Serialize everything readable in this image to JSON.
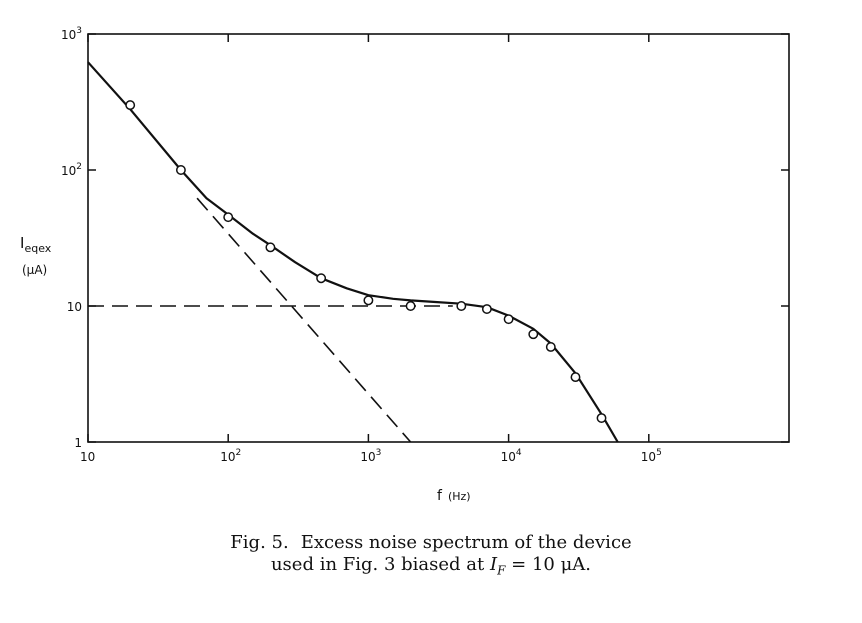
{
  "chart_data": {
    "type": "scatter",
    "xscale": "log",
    "yscale": "log",
    "xlim": [
      10,
      1000000
    ],
    "ylim": [
      1,
      1000
    ],
    "grid": false,
    "xlabel": "f",
    "xunit": "(Hz)",
    "ylabel": "I",
    "ylabel_sub": "eqex",
    "yunit": "(μA)",
    "x_ticks": [
      {
        "value": 10,
        "base": "10",
        "exp": ""
      },
      {
        "value": 100,
        "base": "10",
        "exp": "2"
      },
      {
        "value": 1000,
        "base": "10",
        "exp": "3"
      },
      {
        "value": 10000,
        "base": "10",
        "exp": "4"
      },
      {
        "value": 100000,
        "base": "10",
        "exp": "5"
      }
    ],
    "y_ticks": [
      {
        "value": 1,
        "base": "1",
        "exp": ""
      },
      {
        "value": 10,
        "base": "10",
        "exp": ""
      },
      {
        "value": 100,
        "base": "10",
        "exp": "2"
      },
      {
        "value": 1000,
        "base": "10",
        "exp": "3"
      }
    ],
    "series": [
      {
        "kind": "points",
        "marker": "open-circle",
        "x": [
          20,
          46,
          100,
          200,
          460,
          1000,
          2000,
          4600,
          7000,
          10000,
          15000,
          20000,
          30000,
          46000
        ],
        "y": [
          300,
          100,
          45,
          27,
          16,
          11,
          10,
          10,
          9.5,
          8,
          6.2,
          5,
          3,
          1.5
        ]
      },
      {
        "kind": "fit",
        "style": "solid",
        "x": [
          10,
          20,
          46,
          70,
          100,
          150,
          200,
          300,
          460,
          700,
          1000,
          1500,
          2000,
          3000,
          4600,
          7000,
          10000,
          15000,
          20000,
          30000,
          46000,
          60000
        ],
        "y": [
          620,
          280,
          100,
          62,
          47,
          34,
          28,
          21,
          16,
          13.5,
          12,
          11.3,
          11,
          10.7,
          10.4,
          9.8,
          8.5,
          6.8,
          5.3,
          3.2,
          1.6,
          1.0
        ]
      },
      {
        "kind": "asymptote-1/f",
        "style": "dashed",
        "x": [
          60,
          2000
        ],
        "y": [
          62,
          1
        ]
      },
      {
        "kind": "asymptote-flat",
        "style": "dashed",
        "x": [
          10,
          4000
        ],
        "y": [
          10,
          10
        ]
      }
    ]
  },
  "caption": {
    "number": "Fig. 5.",
    "line1": "Excess noise spectrum of the device",
    "line2_pre": "used in Fig. 3 biased at ",
    "line2_var": "I",
    "line2_sub": "F",
    "line2_post": " = 10 μA."
  }
}
